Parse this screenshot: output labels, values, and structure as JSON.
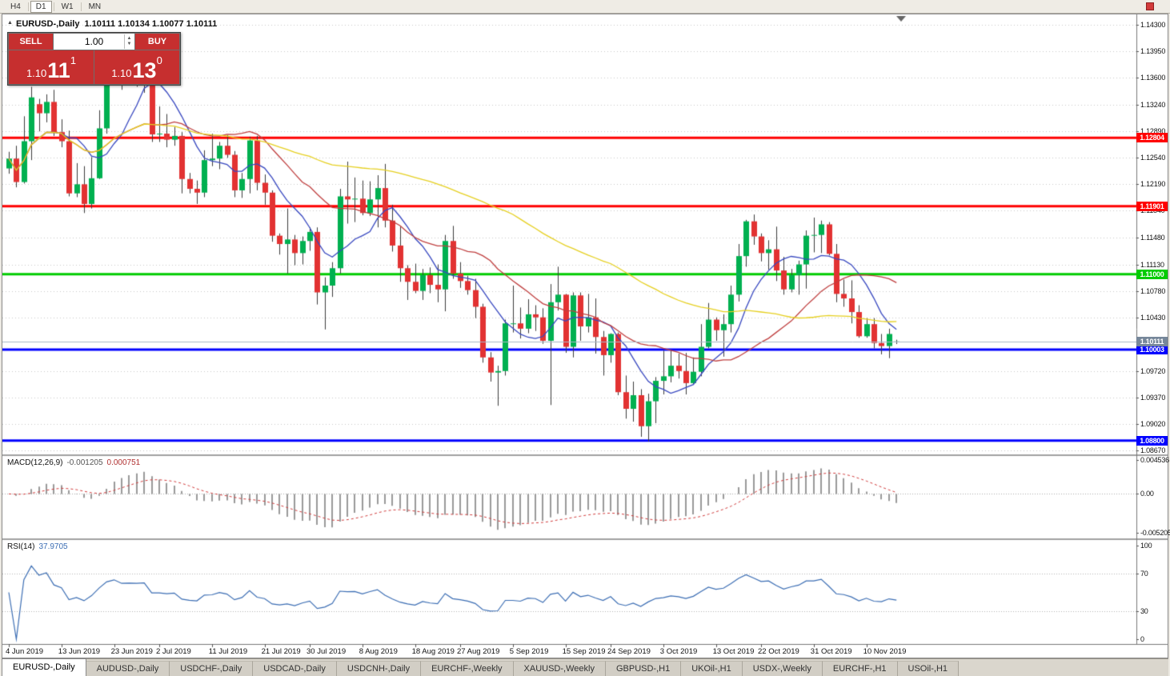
{
  "toolbar": {
    "timeframes": [
      "H4",
      "D1",
      "W1",
      "MN"
    ],
    "active_timeframe": "D1"
  },
  "chart": {
    "title": "EURUSD-,Daily",
    "ohlc": "1.10111 1.10134 1.10077 1.10111"
  },
  "trade_panel": {
    "sell_label": "SELL",
    "buy_label": "BUY",
    "volume": "1.00",
    "sell_price": {
      "big": "1.10",
      "pips": "11",
      "pipette": "1"
    },
    "buy_price": {
      "big": "1.10",
      "pips": "13",
      "pipette": "0"
    }
  },
  "tabs": {
    "active_index": 0,
    "labels": [
      "EURUSD-,Daily",
      "AUDUSD-,Daily",
      "USDCHF-,Daily",
      "USDCAD-,Daily",
      "USDCNH-,Daily",
      "EURCHF-,Weekly",
      "XAUUSD-,Weekly",
      "GBPUSD-,H1",
      "UKOil-,H1",
      "USDX-,Weekly",
      "EURCHF-,H1",
      "USOil-,H1"
    ]
  },
  "chart_data": {
    "type": "candlestick",
    "symbol": "EURUSD-",
    "period": "Daily",
    "colors": {
      "bull": "#00B050",
      "bear": "#E23232",
      "wick": "#3C3C3C",
      "grid": "#C9C9C9",
      "ma_fast": "#3848C0",
      "ma_mid": "#C04040",
      "ma_slow": "#E6D020",
      "macd_hist": "#9A9A9A",
      "macd_signal": "#D23C3C",
      "rsi_line": "#3C6EB4"
    },
    "price_axis": {
      "labels": [
        "1.14300",
        "1.13950",
        "1.13600",
        "1.13240",
        "1.12890",
        "1.12540",
        "1.12190",
        "1.11840",
        "1.11480",
        "1.11130",
        "1.10780",
        "1.10430",
        "1.09720",
        "1.09370",
        "1.09020",
        "1.08670"
      ]
    },
    "hlines": [
      {
        "label": "1.12804",
        "color": "#FF0000",
        "width": 3
      },
      {
        "label": "1.11901",
        "color": "#FF0000",
        "width": 3
      },
      {
        "label": "1.11000",
        "color": "#00CC00",
        "width": 3
      },
      {
        "label": "1.10003",
        "color": "#0000FF",
        "width": 3
      },
      {
        "label": "1.08800",
        "color": "#0000FF",
        "width": 3
      }
    ],
    "bid": {
      "label": "1.10111",
      "tag_color": "#76879A",
      "line_color": "#A9B8C8"
    },
    "moving_averages": [
      {
        "period": 8,
        "method": "sma",
        "color": "#3848C0"
      },
      {
        "period": 21,
        "method": "sma",
        "color": "#C04040"
      },
      {
        "period": 55,
        "method": "sma",
        "color": "#E6D020"
      }
    ],
    "indicators": {
      "macd": {
        "name": "MACD(12,26,9)",
        "main_value": "-0.001205",
        "signal_value": "0.000751",
        "params": {
          "fast": 12,
          "slow": 26,
          "signal": 9
        },
        "scale": {
          "max": "0.004536",
          "zero": "0.00",
          "min": "-0.005205"
        }
      },
      "rsi": {
        "name": "RSI(14)",
        "value": "37.9705",
        "period": 14,
        "scale": [
          "100",
          "70",
          "30",
          "0"
        ],
        "levels": [
          70,
          30
        ]
      }
    },
    "date_ticks": [
      {
        "i": 0,
        "label": "4 Jun 2019"
      },
      {
        "i": 7,
        "label": "13 Jun 2019"
      },
      {
        "i": 14,
        "label": "23 Jun 2019"
      },
      {
        "i": 20,
        "label": "2 Jul 2019"
      },
      {
        "i": 27,
        "label": "11 Jul 2019"
      },
      {
        "i": 34,
        "label": "21 Jul 2019"
      },
      {
        "i": 40,
        "label": "30 Jul 2019"
      },
      {
        "i": 47,
        "label": "8 Aug 2019"
      },
      {
        "i": 54,
        "label": "18 Aug 2019"
      },
      {
        "i": 60,
        "label": "27 Aug 2019"
      },
      {
        "i": 67,
        "label": "5 Sep 2019"
      },
      {
        "i": 74,
        "label": "15 Sep 2019"
      },
      {
        "i": 80,
        "label": "24 Sep 2019"
      },
      {
        "i": 87,
        "label": "3 Oct 2019"
      },
      {
        "i": 94,
        "label": "13 Oct 2019"
      },
      {
        "i": 100,
        "label": "22 Oct 2019"
      },
      {
        "i": 107,
        "label": "31 Oct 2019"
      },
      {
        "i": 114,
        "label": "10 Nov 2019"
      }
    ],
    "candles": [
      [
        1.124,
        1.1262,
        1.1233,
        1.1253
      ],
      [
        1.1253,
        1.127,
        1.1215,
        1.1222
      ],
      [
        1.1222,
        1.1309,
        1.122,
        1.1276
      ],
      [
        1.1276,
        1.1348,
        1.1251,
        1.1334
      ],
      [
        1.1325,
        1.1332,
        1.1289,
        1.1313
      ],
      [
        1.1313,
        1.1338,
        1.1301,
        1.1328
      ],
      [
        1.1328,
        1.1344,
        1.1283,
        1.1288
      ],
      [
        1.1288,
        1.1305,
        1.1268,
        1.1276
      ],
      [
        1.1276,
        1.129,
        1.1203,
        1.1207
      ],
      [
        1.1207,
        1.1247,
        1.1202,
        1.1219
      ],
      [
        1.1219,
        1.1243,
        1.1181,
        1.1193
      ],
      [
        1.1193,
        1.1255,
        1.1187,
        1.1227
      ],
      [
        1.1227,
        1.1317,
        1.1226,
        1.1293
      ],
      [
        1.1293,
        1.1378,
        1.1286,
        1.1369
      ],
      [
        1.1369,
        1.1403,
        1.1363,
        1.1399
      ],
      [
        1.1399,
        1.1405,
        1.1344,
        1.1367
      ],
      [
        1.1367,
        1.1391,
        1.1351,
        1.137
      ],
      [
        1.137,
        1.1388,
        1.1348,
        1.1369
      ],
      [
        1.1369,
        1.139,
        1.134,
        1.1373
      ],
      [
        1.1365,
        1.1368,
        1.1275,
        1.1285
      ],
      [
        1.1285,
        1.1322,
        1.1275,
        1.1286
      ],
      [
        1.1286,
        1.1312,
        1.1268,
        1.1278
      ],
      [
        1.1278,
        1.1295,
        1.127,
        1.1283
      ],
      [
        1.1283,
        1.1288,
        1.1207,
        1.1226
      ],
      [
        1.1226,
        1.1234,
        1.1207,
        1.1213
      ],
      [
        1.1213,
        1.1224,
        1.1193,
        1.1208
      ],
      [
        1.1208,
        1.1264,
        1.1202,
        1.1251
      ],
      [
        1.1251,
        1.1286,
        1.1243,
        1.1253
      ],
      [
        1.1253,
        1.1275,
        1.1239,
        1.127
      ],
      [
        1.127,
        1.1284,
        1.1254,
        1.1258
      ],
      [
        1.1258,
        1.1263,
        1.1202,
        1.1211
      ],
      [
        1.1211,
        1.1234,
        1.1201,
        1.1226
      ],
      [
        1.1226,
        1.1282,
        1.1207,
        1.1277
      ],
      [
        1.1277,
        1.1283,
        1.1211,
        1.1221
      ],
      [
        1.1221,
        1.1232,
        1.1192,
        1.1208
      ],
      [
        1.1208,
        1.1211,
        1.1143,
        1.1151
      ],
      [
        1.1151,
        1.1154,
        1.1126,
        1.114
      ],
      [
        1.114,
        1.1187,
        1.1101,
        1.1146
      ],
      [
        1.1146,
        1.1152,
        1.1112,
        1.1128
      ],
      [
        1.1128,
        1.115,
        1.1113,
        1.1144
      ],
      [
        1.1144,
        1.1162,
        1.1131,
        1.1156
      ],
      [
        1.1156,
        1.1162,
        1.106,
        1.1076
      ],
      [
        1.1076,
        1.1096,
        1.1027,
        1.1085
      ],
      [
        1.1085,
        1.1116,
        1.107,
        1.1108
      ],
      [
        1.1108,
        1.1213,
        1.1101,
        1.1203
      ],
      [
        1.1203,
        1.1249,
        1.1167,
        1.1199
      ],
      [
        1.1199,
        1.1228,
        1.1169,
        1.12
      ],
      [
        1.12,
        1.1224,
        1.1178,
        1.1181
      ],
      [
        1.1181,
        1.1223,
        1.1177,
        1.1199
      ],
      [
        1.1199,
        1.1231,
        1.1162,
        1.1214
      ],
      [
        1.1214,
        1.1246,
        1.1162,
        1.1171
      ],
      [
        1.1171,
        1.1192,
        1.113,
        1.1138
      ],
      [
        1.1138,
        1.1163,
        1.109,
        1.1108
      ],
      [
        1.1108,
        1.1112,
        1.1066,
        1.109
      ],
      [
        1.109,
        1.1114,
        1.1075,
        1.1078
      ],
      [
        1.1078,
        1.1107,
        1.1066,
        1.1099
      ],
      [
        1.1099,
        1.1109,
        1.1075,
        1.1086
      ],
      [
        1.1086,
        1.1113,
        1.1063,
        1.108
      ],
      [
        1.108,
        1.1152,
        1.1051,
        1.1144
      ],
      [
        1.1144,
        1.1164,
        1.1094,
        1.1101
      ],
      [
        1.1101,
        1.1116,
        1.1082,
        1.1091
      ],
      [
        1.1091,
        1.1098,
        1.1073,
        1.1079
      ],
      [
        1.1079,
        1.1094,
        1.1042,
        1.1057
      ],
      [
        1.1057,
        1.1061,
        1.0983,
        1.099
      ],
      [
        1.099,
        1.0997,
        1.0958,
        1.097
      ],
      [
        1.097,
        1.0979,
        1.0926,
        1.0972
      ],
      [
        1.0972,
        1.104,
        1.0966,
        1.1035
      ],
      [
        1.1035,
        1.1085,
        1.1023,
        1.1035
      ],
      [
        1.1035,
        1.1056,
        1.1015,
        1.1028
      ],
      [
        1.1028,
        1.1067,
        1.1022,
        1.1047
      ],
      [
        1.1047,
        1.1059,
        1.1025,
        1.1043
      ],
      [
        1.1043,
        1.1055,
        1.1008,
        1.1012
      ],
      [
        1.1012,
        1.1087,
        1.0927,
        1.1063
      ],
      [
        1.1063,
        1.111,
        1.1052,
        1.1073
      ],
      [
        1.1073,
        1.1074,
        1.0996,
        1.1004
      ],
      [
        1.1004,
        1.1076,
        1.099,
        1.1072
      ],
      [
        1.1072,
        1.1076,
        1.1012,
        1.1031
      ],
      [
        1.1031,
        1.1074,
        1.1023,
        1.1043
      ],
      [
        1.1043,
        1.1068,
        1.0995,
        1.1017
      ],
      [
        1.1017,
        1.1025,
        1.0966,
        1.0993
      ],
      [
        1.0993,
        1.1022,
        1.0983,
        1.1021
      ],
      [
        1.1021,
        1.1023,
        1.094,
        1.0944
      ],
      [
        1.0944,
        1.0966,
        1.0909,
        1.0922
      ],
      [
        1.0922,
        1.0958,
        1.0905,
        1.094
      ],
      [
        1.094,
        1.0948,
        1.0885,
        1.0899
      ],
      [
        1.0899,
        1.0942,
        1.0879,
        1.0932
      ],
      [
        1.0932,
        1.0964,
        1.0903,
        1.0959
      ],
      [
        1.0959,
        1.0999,
        1.0941,
        1.0965
      ],
      [
        1.0965,
        1.0999,
        1.0957,
        1.0979
      ],
      [
        1.0979,
        1.0995,
        1.0962,
        1.0972
      ],
      [
        1.0972,
        1.0996,
        1.0941,
        1.0956
      ],
      [
        1.0956,
        1.099,
        1.0955,
        1.0971
      ],
      [
        1.0971,
        1.1034,
        1.0965,
        1.1004
      ],
      [
        1.1004,
        1.1062,
        1.1002,
        1.104
      ],
      [
        1.104,
        1.1043,
        1.1012,
        1.1026
      ],
      [
        1.1026,
        1.1047,
        1.0991,
        1.1034
      ],
      [
        1.1034,
        1.1085,
        1.1023,
        1.1073
      ],
      [
        1.1073,
        1.114,
        1.1064,
        1.1124
      ],
      [
        1.1124,
        1.1172,
        1.111,
        1.117
      ],
      [
        1.117,
        1.1179,
        1.1139,
        1.115
      ],
      [
        1.115,
        1.1154,
        1.1117,
        1.1128
      ],
      [
        1.1128,
        1.1145,
        1.1106,
        1.1133
      ],
      [
        1.1133,
        1.1163,
        1.1091,
        1.1105
      ],
      [
        1.1105,
        1.1123,
        1.1073,
        1.108
      ],
      [
        1.108,
        1.1107,
        1.1076,
        1.1099
      ],
      [
        1.1099,
        1.1118,
        1.1073,
        1.1113
      ],
      [
        1.1113,
        1.1158,
        1.1081,
        1.1151
      ],
      [
        1.1151,
        1.1175,
        1.1129,
        1.1152
      ],
      [
        1.1152,
        1.1171,
        1.1128,
        1.1166
      ],
      [
        1.1166,
        1.1169,
        1.1125,
        1.1127
      ],
      [
        1.1127,
        1.114,
        1.1063,
        1.1074
      ],
      [
        1.1074,
        1.1093,
        1.1057,
        1.1068
      ],
      [
        1.1068,
        1.1092,
        1.1035,
        1.105
      ],
      [
        1.105,
        1.1059,
        1.1016,
        1.1018
      ],
      [
        1.1018,
        1.1042,
        1.1016,
        1.1034
      ],
      [
        1.1034,
        1.1042,
        1.1002,
        1.1009
      ],
      [
        1.1009,
        1.1021,
        1.0994,
        1.1005
      ],
      [
        1.1005,
        1.1028,
        1.0989,
        1.1021
      ],
      [
        1.10111,
        1.10134,
        1.10077,
        1.10111
      ]
    ]
  }
}
